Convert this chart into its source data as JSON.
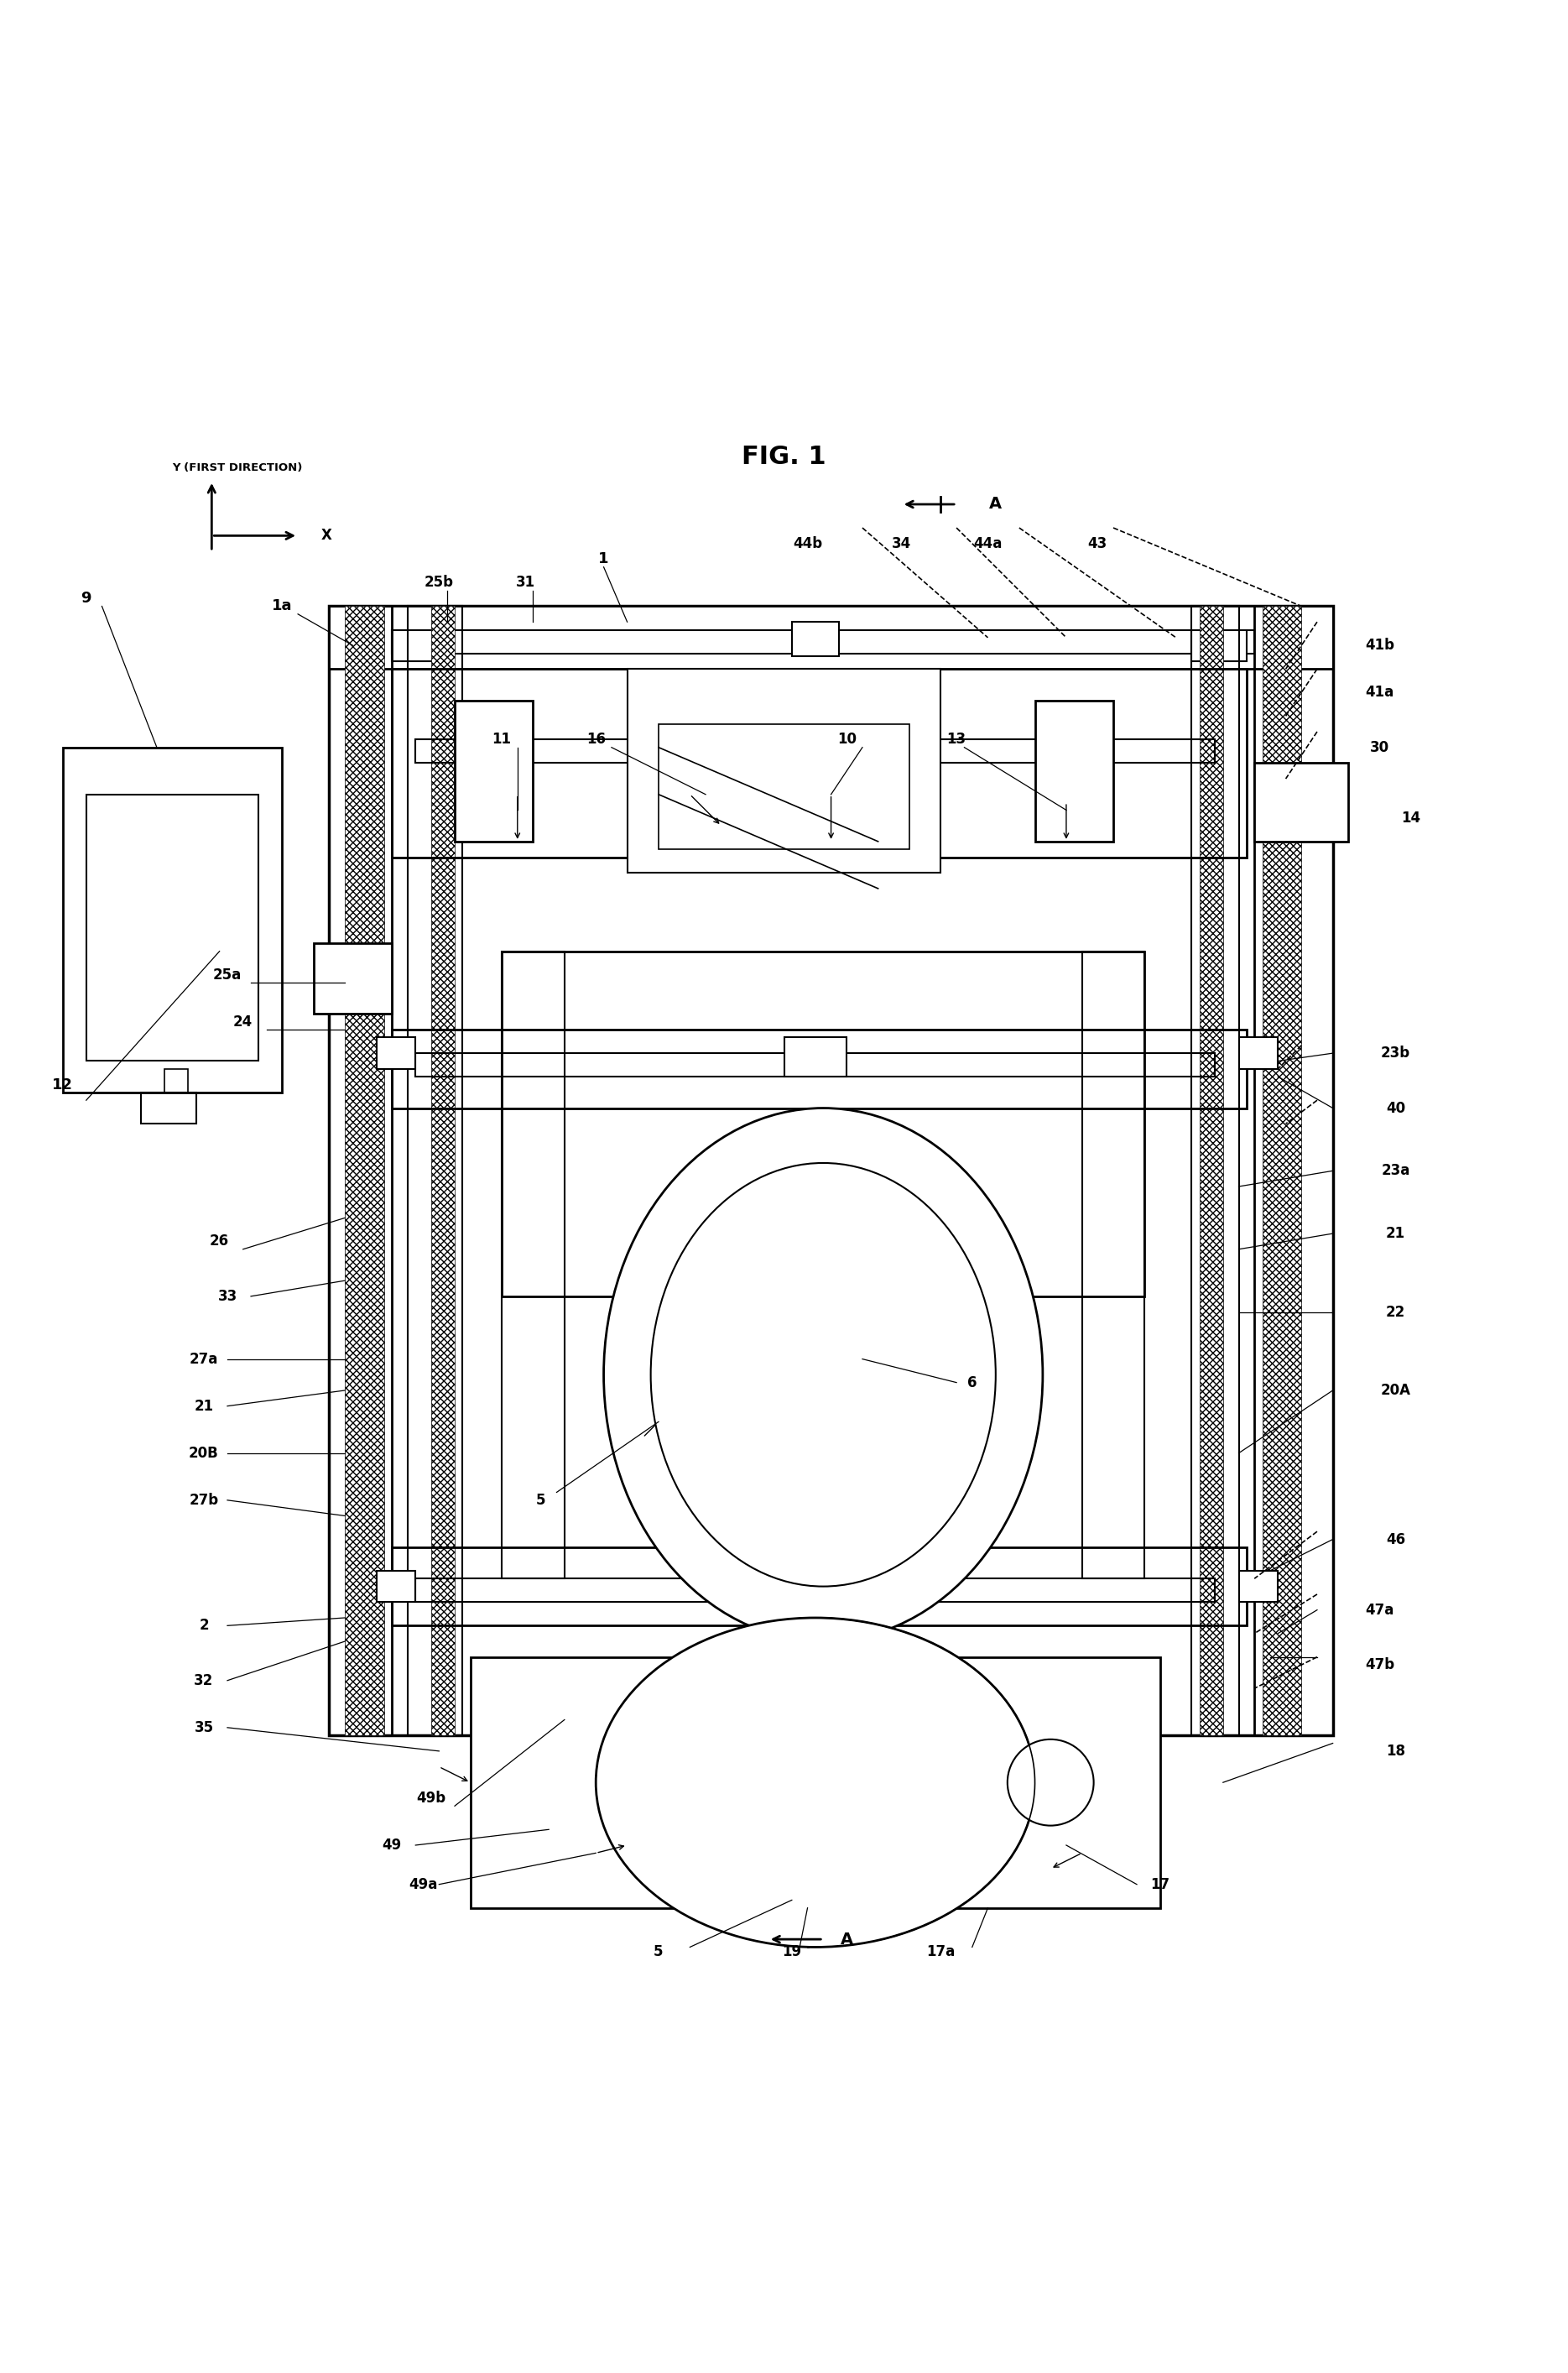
{
  "title": "FIG. 1",
  "bg_color": "#ffffff",
  "lc": "#000000",
  "fig_width": 18.69,
  "fig_height": 28.28,
  "labels": {
    "title": [
      50,
      96.5,
      "FIG. 1",
      20
    ],
    "Y_dir": [
      10.5,
      95.5,
      "Y (FIRST DIRECTION)",
      9.5
    ],
    "X_lbl": [
      20.5,
      90.5,
      "X",
      12
    ],
    "n9": [
      5.5,
      87.5,
      "9",
      13
    ],
    "n1a": [
      18,
      87,
      "1a",
      13
    ],
    "n25b": [
      28,
      88.5,
      "25b",
      12
    ],
    "n31": [
      33.5,
      88.5,
      "31",
      12
    ],
    "n1": [
      38.5,
      90,
      "1",
      13
    ],
    "n44b": [
      51.5,
      91,
      "44b",
      12
    ],
    "n34": [
      57.5,
      91,
      "34",
      12
    ],
    "n44a": [
      63,
      91,
      "44a",
      12
    ],
    "n43": [
      70,
      91,
      "43",
      12
    ],
    "n41b": [
      88,
      84.5,
      "41b",
      12
    ],
    "n41a": [
      88,
      81.5,
      "41a",
      12
    ],
    "n30": [
      88,
      78,
      "30",
      12
    ],
    "n14": [
      90,
      73.5,
      "14",
      12
    ],
    "n11": [
      32,
      78,
      "11",
      12
    ],
    "n16": [
      38,
      78.5,
      "16",
      12
    ],
    "n10": [
      54,
      78.5,
      "10",
      12
    ],
    "n13": [
      61,
      78.5,
      "13",
      12
    ],
    "n25a": [
      14.5,
      63.5,
      "25a",
      12
    ],
    "n24": [
      15.5,
      60.5,
      "24",
      12
    ],
    "n12": [
      4,
      56.5,
      "12",
      13
    ],
    "n23b": [
      89,
      58.5,
      "23b",
      12
    ],
    "n40": [
      89,
      55,
      "40",
      12
    ],
    "n23a": [
      89,
      51,
      "23a",
      12
    ],
    "n21r": [
      89,
      47,
      "21",
      12
    ],
    "n26": [
      14,
      46.5,
      "26",
      12
    ],
    "n33": [
      14.5,
      43,
      "33",
      12
    ],
    "n27a": [
      13,
      39,
      "27a",
      12
    ],
    "n21l": [
      13,
      36,
      "21",
      12
    ],
    "n20B": [
      13,
      33,
      "20B",
      12
    ],
    "n27b": [
      13,
      30,
      "27b",
      12
    ],
    "n5i": [
      34.5,
      30,
      "5",
      12
    ],
    "n6": [
      62,
      37.5,
      "6",
      12
    ],
    "n22": [
      89,
      42,
      "22",
      12
    ],
    "n20A": [
      89,
      37,
      "20A",
      12
    ],
    "n46": [
      89,
      27.5,
      "46",
      12
    ],
    "n47a": [
      88,
      23,
      "47a",
      12
    ],
    "n47b": [
      88,
      19.5,
      "47b",
      12
    ],
    "n18": [
      89,
      14,
      "18",
      12
    ],
    "n2": [
      13,
      22,
      "2",
      12
    ],
    "n32": [
      13,
      18.5,
      "32",
      12
    ],
    "n35": [
      13,
      15.5,
      "35",
      12
    ],
    "n49b": [
      27.5,
      11,
      "49b",
      12
    ],
    "n49": [
      25,
      8,
      "49",
      12
    ],
    "n49a": [
      27,
      5.5,
      "49a",
      12
    ],
    "n5b": [
      42,
      1.2,
      "5",
      12
    ],
    "n19": [
      50.5,
      1.2,
      "19",
      12
    ],
    "n17a": [
      60,
      1.2,
      "17a",
      12
    ],
    "n17": [
      74,
      5.5,
      "17",
      12
    ],
    "nA1": [
      63.5,
      93.5,
      "A",
      14
    ],
    "nA2": [
      55,
      1.2,
      "A",
      14
    ]
  }
}
